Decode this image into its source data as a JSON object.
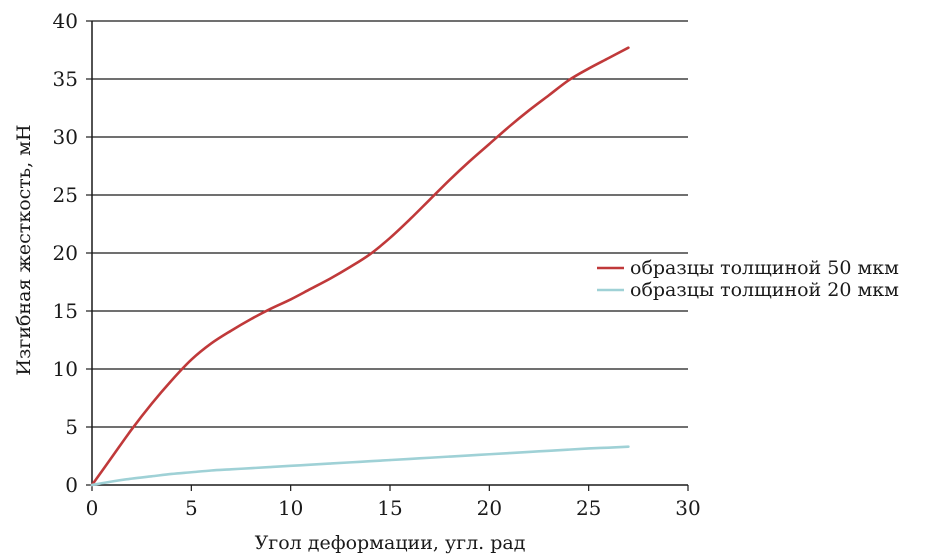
{
  "chart_data": {
    "type": "line",
    "xlabel": "Угол деформации, угл. рад",
    "ylabel": "Изгибная жесткость, мН",
    "xlim": [
      0,
      30
    ],
    "ylim": [
      0,
      40
    ],
    "xticks": [
      0,
      5,
      10,
      15,
      20,
      25,
      30
    ],
    "yticks": [
      0,
      5,
      10,
      15,
      20,
      25,
      30,
      35,
      40
    ],
    "grid": "horizontal",
    "legend_position": "right",
    "series": [
      {
        "name": "образцы толщиной 50 мкм",
        "color": "#c0393a",
        "x": [
          0,
          1,
          2,
          3,
          4,
          5,
          6,
          7,
          8,
          9,
          10,
          11,
          12,
          13,
          14,
          15,
          16,
          17,
          18,
          19,
          20,
          21,
          22,
          23,
          24,
          25,
          26,
          27
        ],
        "y": [
          0,
          2.4,
          4.8,
          7.0,
          9.0,
          10.8,
          12.2,
          13.3,
          14.3,
          15.2,
          16.0,
          16.9,
          17.8,
          18.8,
          19.9,
          21.3,
          22.9,
          24.6,
          26.3,
          27.9,
          29.4,
          30.9,
          32.3,
          33.6,
          34.9,
          35.9,
          36.8,
          37.7
        ]
      },
      {
        "name": "образцы толщиной 20 мкм",
        "color": "#9fd1d6",
        "x": [
          0,
          1,
          2,
          3,
          4,
          5,
          6,
          7,
          8,
          9,
          10,
          11,
          12,
          13,
          14,
          15,
          16,
          17,
          18,
          19,
          20,
          21,
          22,
          23,
          24,
          25,
          26,
          27
        ],
        "y": [
          0,
          0.3,
          0.55,
          0.75,
          0.95,
          1.1,
          1.25,
          1.35,
          1.45,
          1.55,
          1.65,
          1.75,
          1.85,
          1.95,
          2.05,
          2.15,
          2.25,
          2.35,
          2.45,
          2.55,
          2.65,
          2.75,
          2.85,
          2.95,
          3.05,
          3.15,
          3.22,
          3.3
        ]
      }
    ]
  }
}
